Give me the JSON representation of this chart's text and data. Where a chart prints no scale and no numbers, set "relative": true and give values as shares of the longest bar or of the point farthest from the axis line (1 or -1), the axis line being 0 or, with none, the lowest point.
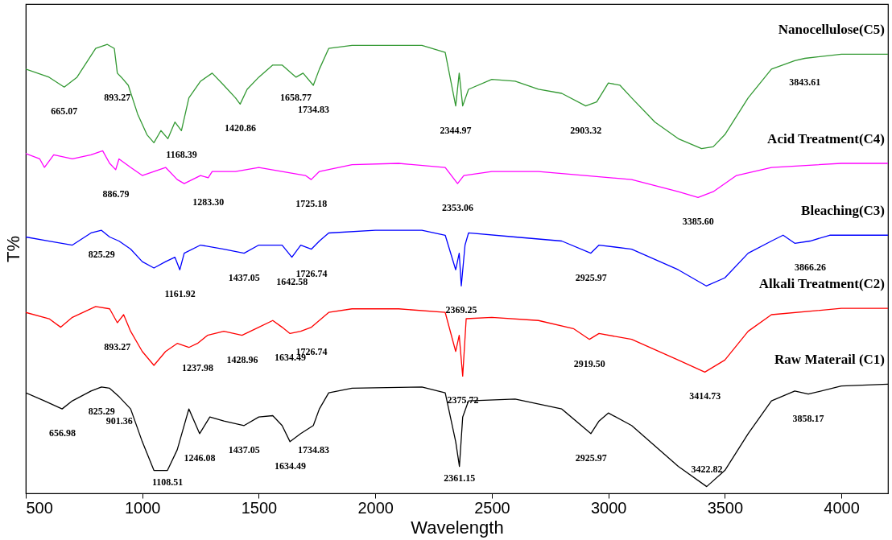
{
  "chart_data": {
    "type": "line",
    "xlabel": "Wavelength",
    "ylabel": "T%",
    "relative": true,
    "xlim": [
      500,
      4200
    ],
    "xticks": [
      500,
      1000,
      1500,
      2000,
      2500,
      3000,
      3500,
      4000
    ],
    "grid": false,
    "tick_labels": "x",
    "marker": "none",
    "line_style": "solid",
    "series": [
      {
        "name": "Nanocellulose(C5)",
        "color": "#339933",
        "x": [
          500,
          600,
          665,
          720,
          800,
          850,
          880,
          893,
          910,
          940,
          980,
          1020,
          1050,
          1080,
          1110,
          1140,
          1168,
          1200,
          1250,
          1300,
          1350,
          1400,
          1420,
          1450,
          1500,
          1560,
          1600,
          1640,
          1660,
          1690,
          1734,
          1760,
          1800,
          1900,
          2000,
          2200,
          2300,
          2345,
          2360,
          2375,
          2400,
          2500,
          2600,
          2700,
          2800,
          2903,
          2950,
          3000,
          3050,
          3100,
          3200,
          3300,
          3400,
          3450,
          3500,
          3600,
          3700,
          3800,
          3843,
          4000,
          4200
        ],
        "values": [
          0.945,
          0.927,
          0.905,
          0.927,
          0.991,
          1.0,
          0.991,
          0.936,
          0.927,
          0.909,
          0.845,
          0.799,
          0.781,
          0.808,
          0.79,
          0.827,
          0.808,
          0.881,
          0.918,
          0.936,
          0.909,
          0.881,
          0.867,
          0.9,
          0.927,
          0.954,
          0.954,
          0.936,
          0.927,
          0.936,
          0.909,
          0.945,
          0.991,
          0.998,
          0.998,
          0.998,
          0.982,
          0.863,
          0.936,
          0.863,
          0.9,
          0.922,
          0.918,
          0.9,
          0.891,
          0.863,
          0.872,
          0.914,
          0.909,
          0.881,
          0.827,
          0.79,
          0.768,
          0.772,
          0.799,
          0.881,
          0.945,
          0.964,
          0.969,
          0.978,
          0.978
        ]
      },
      {
        "name": "Acid Treatment(C4)",
        "color": "#ff00ff",
        "x": [
          500,
          560,
          580,
          620,
          700,
          780,
          830,
          860,
          886,
          900,
          950,
          1000,
          1050,
          1100,
          1150,
          1180,
          1250,
          1283,
          1300,
          1400,
          1500,
          1600,
          1700,
          1725,
          1760,
          1900,
          2100,
          2300,
          2353,
          2380,
          2500,
          2700,
          2900,
          3100,
          3300,
          3385,
          3450,
          3550,
          3700,
          4000,
          4200
        ],
        "values": [
          0.757,
          0.745,
          0.726,
          0.754,
          0.745,
          0.754,
          0.763,
          0.735,
          0.721,
          0.745,
          0.726,
          0.708,
          0.717,
          0.726,
          0.699,
          0.69,
          0.708,
          0.703,
          0.717,
          0.717,
          0.726,
          0.717,
          0.708,
          0.699,
          0.717,
          0.732,
          0.735,
          0.726,
          0.69,
          0.708,
          0.717,
          0.717,
          0.708,
          0.699,
          0.672,
          0.659,
          0.672,
          0.708,
          0.726,
          0.735,
          0.735
        ]
      },
      {
        "name": "Bleaching(C3)",
        "color": "#0000ff",
        "x": [
          500,
          600,
          700,
          780,
          825,
          860,
          900,
          950,
          1000,
          1050,
          1100,
          1140,
          1161,
          1180,
          1250,
          1350,
          1437,
          1500,
          1600,
          1642,
          1680,
          1726,
          1760,
          1800,
          2000,
          2200,
          2300,
          2345,
          2360,
          2369,
          2385,
          2400,
          2600,
          2800,
          2925,
          2960,
          3100,
          3300,
          3420,
          3500,
          3600,
          3700,
          3750,
          3800,
          3866,
          3950,
          4200
        ],
        "values": [
          0.571,
          0.562,
          0.553,
          0.58,
          0.586,
          0.571,
          0.562,
          0.544,
          0.516,
          0.502,
          0.516,
          0.526,
          0.498,
          0.535,
          0.553,
          0.544,
          0.535,
          0.553,
          0.553,
          0.526,
          0.553,
          0.544,
          0.562,
          0.58,
          0.586,
          0.586,
          0.575,
          0.498,
          0.535,
          0.462,
          0.553,
          0.58,
          0.571,
          0.562,
          0.535,
          0.553,
          0.544,
          0.498,
          0.462,
          0.48,
          0.535,
          0.562,
          0.575,
          0.557,
          0.562,
          0.575,
          0.575
        ]
      },
      {
        "name": "Alkali Treatment(C2)",
        "color": "#ff0000",
        "x": [
          500,
          600,
          650,
          700,
          800,
          860,
          893,
          920,
          950,
          1000,
          1050,
          1100,
          1150,
          1200,
          1237,
          1280,
          1350,
          1428,
          1500,
          1560,
          1600,
          1634,
          1680,
          1726,
          1800,
          1900,
          2100,
          2300,
          2345,
          2360,
          2375,
          2390,
          2500,
          2700,
          2850,
          2919,
          2960,
          3100,
          3300,
          3414,
          3500,
          3600,
          3700,
          4000,
          4200
        ],
        "values": [
          0.403,
          0.389,
          0.37,
          0.392,
          0.416,
          0.411,
          0.38,
          0.398,
          0.361,
          0.316,
          0.285,
          0.316,
          0.334,
          0.325,
          0.334,
          0.352,
          0.361,
          0.352,
          0.37,
          0.385,
          0.37,
          0.356,
          0.361,
          0.37,
          0.403,
          0.411,
          0.411,
          0.403,
          0.316,
          0.352,
          0.261,
          0.389,
          0.392,
          0.385,
          0.367,
          0.343,
          0.356,
          0.343,
          0.297,
          0.27,
          0.297,
          0.361,
          0.398,
          0.412,
          0.412
        ]
      },
      {
        "name": "Raw Materail (C1)",
        "color": "#000000",
        "x": [
          500,
          580,
          656,
          700,
          780,
          825,
          860,
          901,
          950,
          1000,
          1050,
          1108,
          1150,
          1200,
          1246,
          1290,
          1350,
          1437,
          1500,
          1560,
          1600,
          1634,
          1680,
          1734,
          1760,
          1800,
          1900,
          2200,
          2300,
          2345,
          2361,
          2375,
          2400,
          2600,
          2800,
          2925,
          2960,
          3000,
          3100,
          3300,
          3422,
          3500,
          3600,
          3700,
          3800,
          3858,
          4000,
          4200
        ],
        "values": [
          0.224,
          0.206,
          0.188,
          0.206,
          0.228,
          0.237,
          0.234,
          0.215,
          0.188,
          0.115,
          0.051,
          0.051,
          0.097,
          0.188,
          0.133,
          0.17,
          0.161,
          0.151,
          0.17,
          0.173,
          0.151,
          0.115,
          0.133,
          0.151,
          0.188,
          0.224,
          0.234,
          0.237,
          0.224,
          0.115,
          0.06,
          0.17,
          0.206,
          0.21,
          0.188,
          0.133,
          0.161,
          0.179,
          0.151,
          0.06,
          0.015,
          0.051,
          0.133,
          0.206,
          0.228,
          0.221,
          0.239,
          0.243
        ]
      }
    ],
    "annotations": [
      {
        "text": "665.07",
        "x": 665.07,
        "y": 0.905
      },
      {
        "text": "893.27",
        "x": 893.27,
        "y": 0.936
      },
      {
        "text": "1168.39",
        "x": 1168.39,
        "y": 0.808
      },
      {
        "text": "1420.86",
        "x": 1420.86,
        "y": 0.867
      },
      {
        "text": "1658.77",
        "x": 1658.77,
        "y": 0.936
      },
      {
        "text": "1734.83",
        "x": 1734.83,
        "y": 0.909
      },
      {
        "text": "2344.97",
        "x": 2344.97,
        "y": 0.863
      },
      {
        "text": "2903.32",
        "x": 2903.32,
        "y": 0.863
      },
      {
        "text": "3843.61",
        "x": 3843.61,
        "y": 0.969
      },
      {
        "text": "886.79",
        "x": 886.79,
        "y": 0.721
      },
      {
        "text": "1283.30",
        "x": 1283.3,
        "y": 0.703
      },
      {
        "text": "1725.18",
        "x": 1725.18,
        "y": 0.699
      },
      {
        "text": "2353.06",
        "x": 2353.06,
        "y": 0.69
      },
      {
        "text": "3385.60",
        "x": 3385.6,
        "y": 0.659
      },
      {
        "text": "825.29",
        "x": 825.29,
        "y": 0.586
      },
      {
        "text": "1161.92",
        "x": 1161.92,
        "y": 0.498
      },
      {
        "text": "1437.05",
        "x": 1437.05,
        "y": 0.535
      },
      {
        "text": "1642.58",
        "x": 1642.58,
        "y": 0.526
      },
      {
        "text": "1726.74",
        "x": 1726.74,
        "y": 0.544
      },
      {
        "text": "2369.25",
        "x": 2369.25,
        "y": 0.462
      },
      {
        "text": "2925.97",
        "x": 2925.97,
        "y": 0.535
      },
      {
        "text": "3866.26",
        "x": 3866.26,
        "y": 0.557
      },
      {
        "text": "893.27",
        "x": 893.27,
        "y": 0.38
      },
      {
        "text": "1237.98",
        "x": 1237.98,
        "y": 0.334
      },
      {
        "text": "1428.96",
        "x": 1428.96,
        "y": 0.352
      },
      {
        "text": "1634.49",
        "x": 1634.49,
        "y": 0.356
      },
      {
        "text": "1726.74",
        "x": 1726.74,
        "y": 0.37
      },
      {
        "text": "2375.72",
        "x": 2375.72,
        "y": 0.261
      },
      {
        "text": "2919.50",
        "x": 2919.5,
        "y": 0.343
      },
      {
        "text": "3414.73",
        "x": 3414.73,
        "y": 0.27
      },
      {
        "text": "656.98",
        "x": 656.98,
        "y": 0.188
      },
      {
        "text": "825.29",
        "x": 825.29,
        "y": 0.237
      },
      {
        "text": "901.36",
        "x": 901.36,
        "y": 0.215
      },
      {
        "text": "1108.51",
        "x": 1108.51,
        "y": 0.051
      },
      {
        "text": "1246.08",
        "x": 1246.08,
        "y": 0.133
      },
      {
        "text": "1437.05",
        "x": 1437.05,
        "y": 0.151
      },
      {
        "text": "1634.49",
        "x": 1634.49,
        "y": 0.115
      },
      {
        "text": "1734.83",
        "x": 1734.83,
        "y": 0.151
      },
      {
        "text": "2361.15",
        "x": 2361.15,
        "y": 0.06
      },
      {
        "text": "2925.97",
        "x": 2925.97,
        "y": 0.133
      },
      {
        "text": "3422.82",
        "x": 3422.82,
        "y": 0.015
      },
      {
        "text": "3858.17",
        "x": 3858.17,
        "y": 0.221
      }
    ]
  }
}
